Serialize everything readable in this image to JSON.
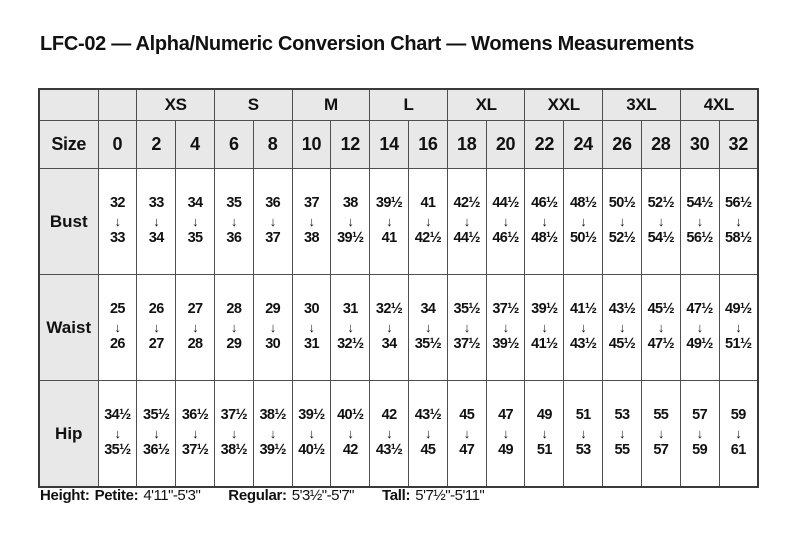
{
  "page": {
    "title": "LFC-02 — Alpha/Numeric Conversion Chart — Womens Measurements"
  },
  "table": {
    "corner_label": "",
    "size_label": "Size",
    "arrow_icon": "↓",
    "alpha_row": [
      {
        "label": "",
        "span": 1
      },
      {
        "label": "XS",
        "span": 2
      },
      {
        "label": "S",
        "span": 2
      },
      {
        "label": "M",
        "span": 2
      },
      {
        "label": "L",
        "span": 2
      },
      {
        "label": "XL",
        "span": 2
      },
      {
        "label": "XXL",
        "span": 2
      },
      {
        "label": "3XL",
        "span": 2
      },
      {
        "label": "4XL",
        "span": 2
      }
    ],
    "numeric_sizes": [
      "0",
      "2",
      "4",
      "6",
      "8",
      "10",
      "12",
      "14",
      "16",
      "18",
      "20",
      "22",
      "24",
      "26",
      "28",
      "30",
      "32"
    ],
    "rows": [
      {
        "label": "Bust",
        "from": [
          "32",
          "33",
          "34",
          "35",
          "36",
          "37",
          "38",
          "39½",
          "41",
          "42½",
          "44½",
          "46½",
          "48½",
          "50½",
          "52½",
          "54½",
          "56½"
        ],
        "to": [
          "33",
          "34",
          "35",
          "36",
          "37",
          "38",
          "39½",
          "41",
          "42½",
          "44½",
          "46½",
          "48½",
          "50½",
          "52½",
          "54½",
          "56½",
          "58½"
        ]
      },
      {
        "label": "Waist",
        "from": [
          "25",
          "26",
          "27",
          "28",
          "29",
          "30",
          "31",
          "32½",
          "34",
          "35½",
          "37½",
          "39½",
          "41½",
          "43½",
          "45½",
          "47½",
          "49½"
        ],
        "to": [
          "26",
          "27",
          "28",
          "29",
          "30",
          "31",
          "32½",
          "34",
          "35½",
          "37½",
          "39½",
          "41½",
          "43½",
          "45½",
          "47½",
          "49½",
          "51½"
        ]
      },
      {
        "label": "Hip",
        "from": [
          "34½",
          "35½",
          "36½",
          "37½",
          "38½",
          "39½",
          "40½",
          "42",
          "43½",
          "45",
          "47",
          "49",
          "51",
          "53",
          "55",
          "57",
          "59"
        ],
        "to": [
          "35½",
          "36½",
          "37½",
          "38½",
          "39½",
          "40½",
          "42",
          "43½",
          "45",
          "47",
          "49",
          "51",
          "53",
          "55",
          "57",
          "59",
          "61"
        ]
      }
    ]
  },
  "footer": {
    "height_label": "Height:",
    "segments": [
      {
        "label": "Petite:",
        "value": "4'11\"-5'3\""
      },
      {
        "label": "Regular:",
        "value": "5'3½\"-5'7\""
      },
      {
        "label": "Tall:",
        "value": "5'7½\"-5'11\""
      }
    ]
  },
  "colors": {
    "header_bg": "#e8e8e8",
    "border": "#4f4f4f",
    "text": "#111111",
    "background": "#ffffff"
  }
}
